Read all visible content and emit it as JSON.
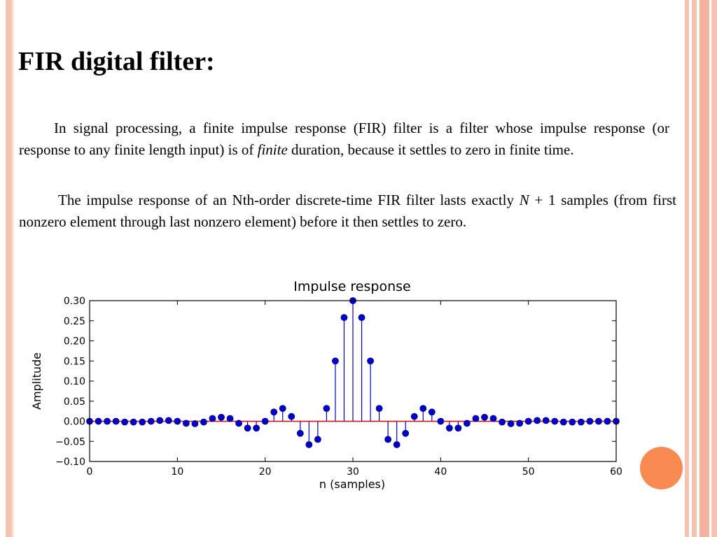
{
  "slide": {
    "title": "FIR digital filter:",
    "paragraph1": {
      "before": "In signal processing, a finite impulse response (FIR) filter is a filter whose impulse response (or response to any finite length input) is of ",
      "emphasis": "finite",
      "after": " duration, because it settles to zero in finite time."
    },
    "paragraph2": {
      "before": "The  impulse response of an Nth-order discrete-time FIR filter lasts exactly ",
      "var": "N",
      "after": " + 1 samples (from first nonzero element through last nonzero element) before it then settles to zero."
    }
  },
  "colors": {
    "stem": "#0000cc",
    "baseline": "#e8000b",
    "accent_bar": "#f6c3b1",
    "orange_dot": "#f98a52"
  },
  "chart_data": {
    "type": "stem",
    "title": "Impulse response",
    "xlabel": "n (samples)",
    "ylabel": "Amplitude",
    "xlim": [
      0,
      60
    ],
    "ylim": [
      -0.1,
      0.3
    ],
    "xticks": [
      0,
      10,
      20,
      30,
      40,
      50,
      60
    ],
    "xtick_labels": [
      "0",
      "10",
      "20",
      "30",
      "40",
      "50",
      "60"
    ],
    "yticks": [
      -0.1,
      -0.05,
      0.0,
      0.05,
      0.1,
      0.15,
      0.2,
      0.25,
      0.3
    ],
    "ytick_labels": [
      "−0.10",
      "−0.05",
      "0.00",
      "0.05",
      "0.10",
      "0.15",
      "0.20",
      "0.25",
      "0.30"
    ],
    "grid": false,
    "x": [
      0,
      1,
      2,
      3,
      4,
      5,
      6,
      7,
      8,
      9,
      10,
      11,
      12,
      13,
      14,
      15,
      16,
      17,
      18,
      19,
      20,
      21,
      22,
      23,
      24,
      25,
      26,
      27,
      28,
      29,
      30,
      31,
      32,
      33,
      34,
      35,
      36,
      37,
      38,
      39,
      40,
      41,
      42,
      43,
      44,
      45,
      46,
      47,
      48,
      49,
      50,
      51,
      52,
      53,
      54,
      55,
      56,
      57,
      58,
      59,
      60
    ],
    "values": [
      0.0,
      0.0,
      0.0,
      0.0,
      -0.002,
      -0.002,
      -0.002,
      0.0,
      0.002,
      0.002,
      0.0,
      -0.005,
      -0.006,
      -0.002,
      0.007,
      0.01,
      0.007,
      -0.005,
      -0.017,
      -0.017,
      0.0,
      0.023,
      0.032,
      0.012,
      -0.03,
      -0.058,
      -0.045,
      0.032,
      0.15,
      0.258,
      0.3,
      0.258,
      0.15,
      0.032,
      -0.045,
      -0.058,
      -0.03,
      0.012,
      0.032,
      0.023,
      0.0,
      -0.017,
      -0.017,
      -0.005,
      0.007,
      0.01,
      0.007,
      -0.002,
      -0.006,
      -0.005,
      0.0,
      0.002,
      0.002,
      0.0,
      -0.002,
      -0.002,
      -0.002,
      0.0,
      0.0,
      0.0,
      0.0
    ]
  }
}
